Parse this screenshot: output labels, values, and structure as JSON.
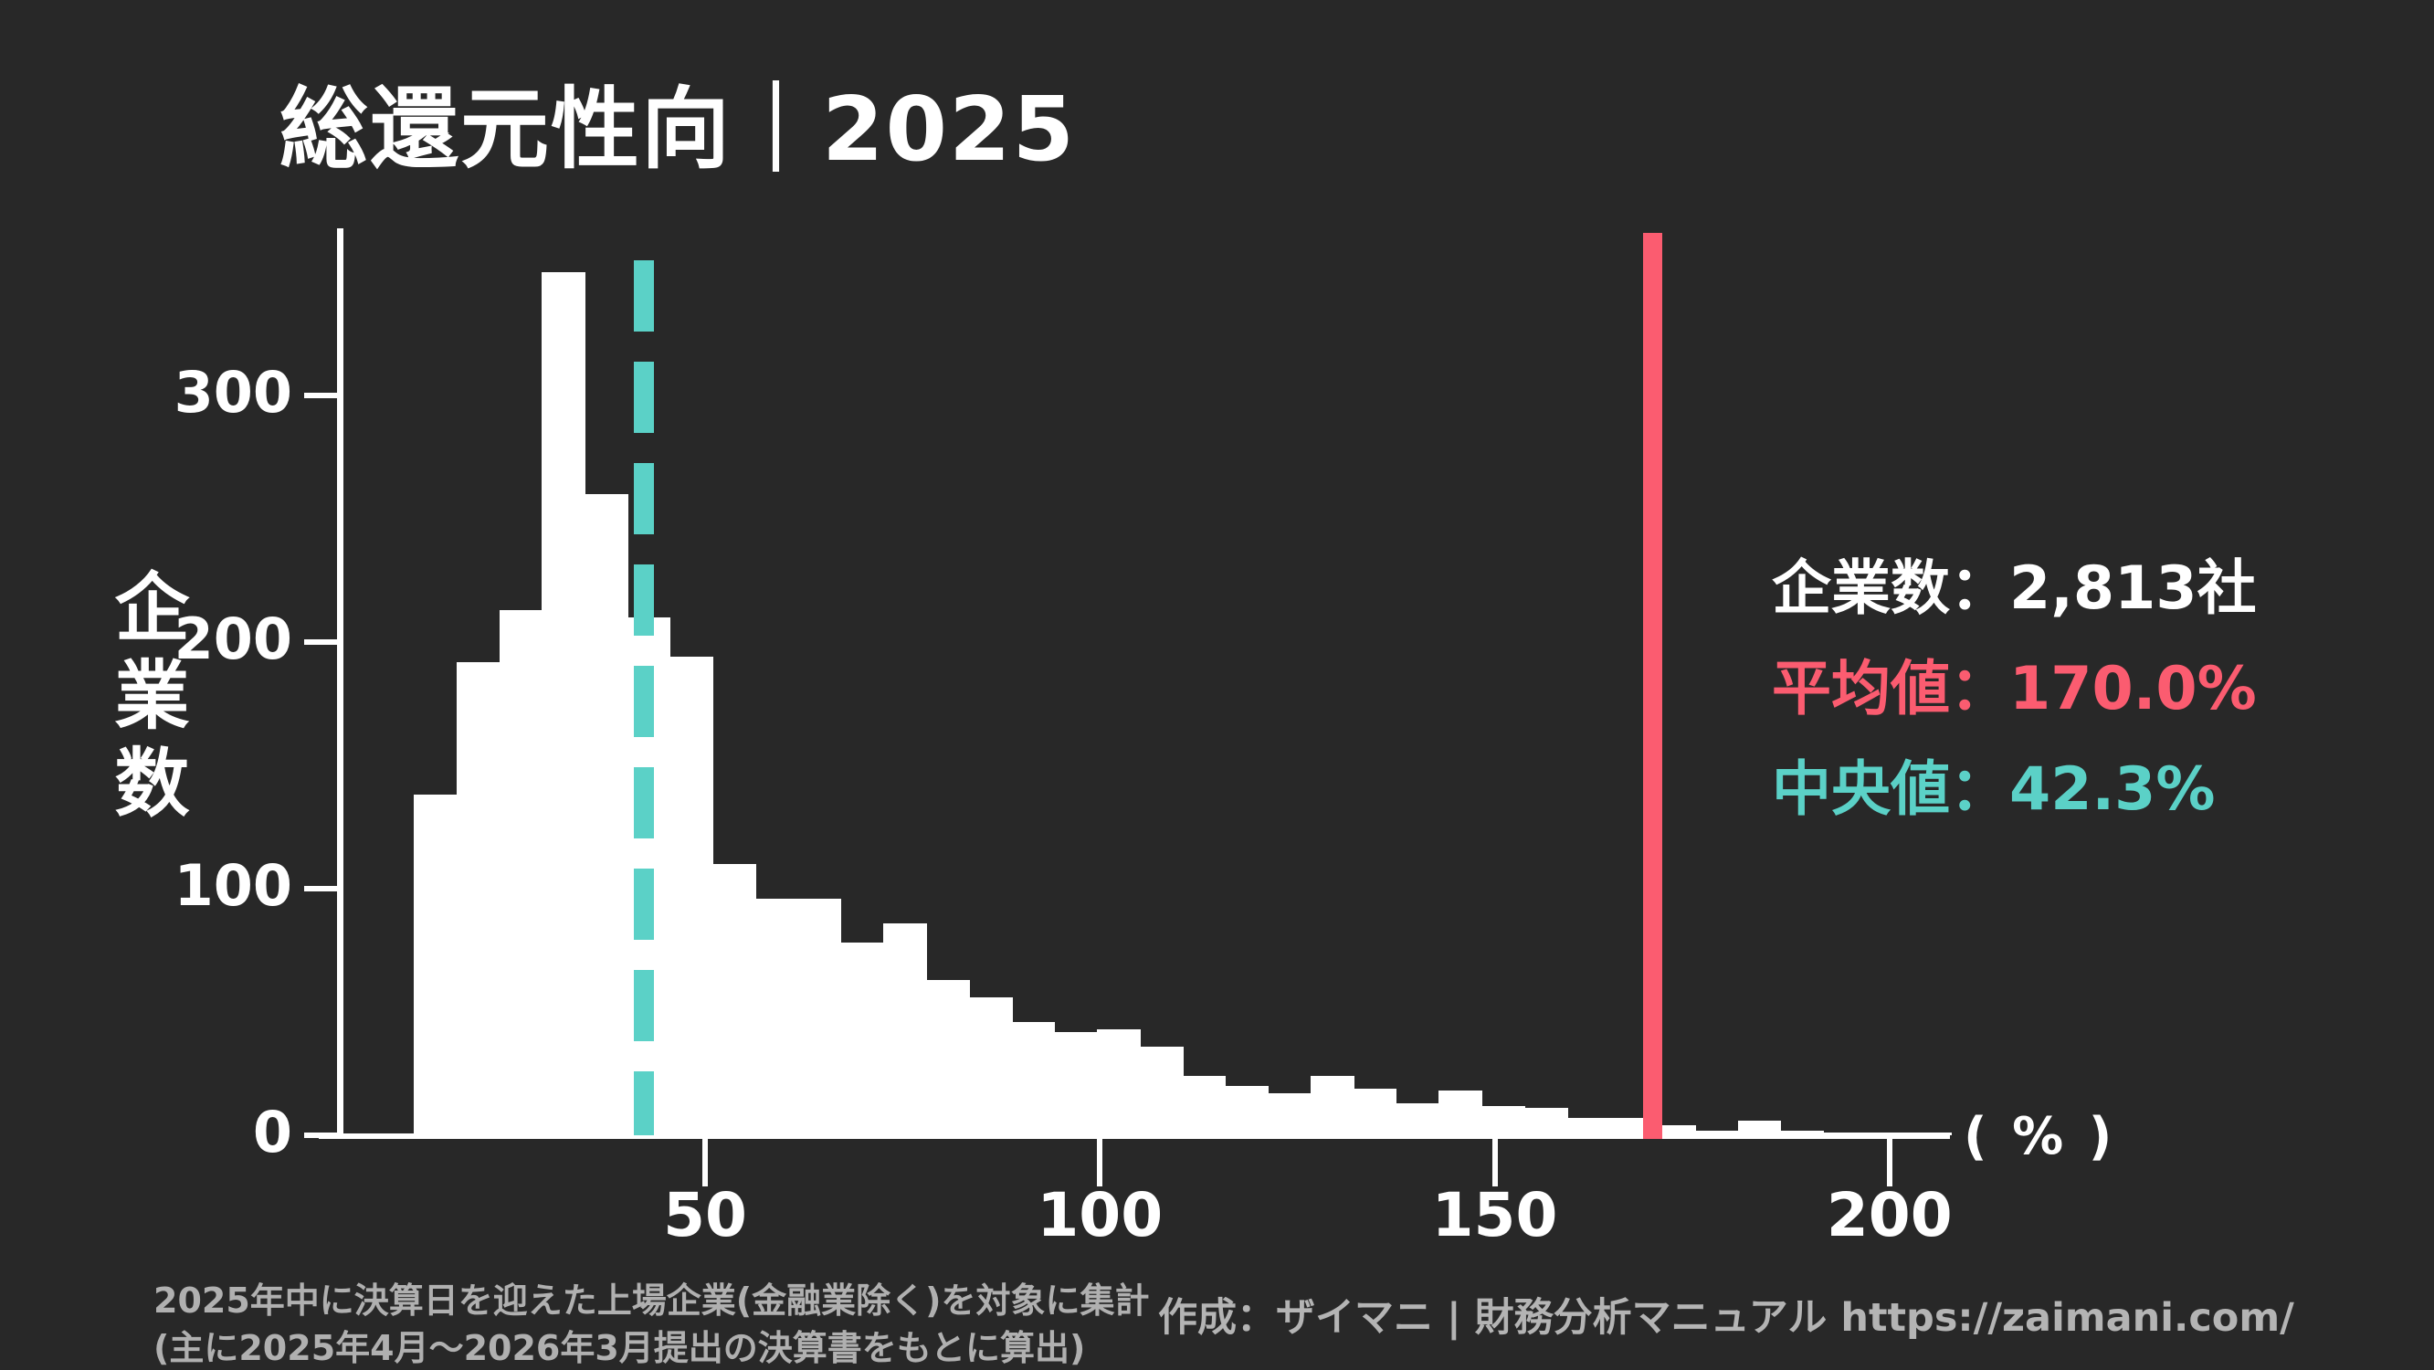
{
  "title": "総還元性向｜2025",
  "y_axis": {
    "label": "企業数",
    "tick_labels": [
      "0",
      "100",
      "200",
      "300"
    ]
  },
  "x_axis": {
    "tick_labels": [
      "50",
      "100",
      "150",
      "200"
    ],
    "unit": "( % )"
  },
  "stats": {
    "count_label": "企業数：",
    "count_value": "2,813社",
    "mean_label": "平均値：",
    "mean_value": "170.0%",
    "median_label": "中央値：",
    "median_value": "42.3%"
  },
  "footnote": {
    "line1": "2025年中に決算日を迎えた上場企業(金融業除く)を対象に集計",
    "line2": "(主に2025年4月〜2026年3月提出の決算書をもとに算出)"
  },
  "credit": "作成：ザイマニ | 財務分析マニュアル https://zaimani.com/",
  "colors": {
    "background": "#282828",
    "bar": "#ffffff",
    "median_line": "#5BD1C7",
    "mean_line": "#FB5C70",
    "text": "#ffffff",
    "muted_text": "#b0b0b0"
  },
  "chart_data": {
    "type": "bar",
    "subtype": "histogram",
    "title": "総還元性向｜2025",
    "xlabel": "(%)",
    "ylabel": "企業数",
    "bin_start": 13.1,
    "bin_width": 5.41,
    "values": [
      138,
      192,
      213,
      350,
      260,
      210,
      194,
      110,
      96,
      96,
      78,
      86,
      63,
      56,
      46,
      42,
      43,
      36,
      24,
      20,
      17,
      24,
      19,
      13,
      18,
      12,
      11,
      7,
      7,
      4,
      2,
      6,
      2,
      1,
      1,
      1
    ],
    "xlim": [
      0,
      225
    ],
    "ylim": [
      0,
      360
    ],
    "x_ticks": [
      50,
      100,
      150,
      200
    ],
    "y_ticks": [
      0,
      100,
      200,
      300
    ],
    "grid": false,
    "legend_position": "right",
    "company_count": 2813,
    "mean": 170.0,
    "median": 42.3,
    "mean_line": {
      "value": 170.0,
      "style": "solid",
      "color": "#FB5C70"
    },
    "median_line": {
      "value": 42.3,
      "style": "dashed",
      "color": "#5BD1C7"
    }
  }
}
